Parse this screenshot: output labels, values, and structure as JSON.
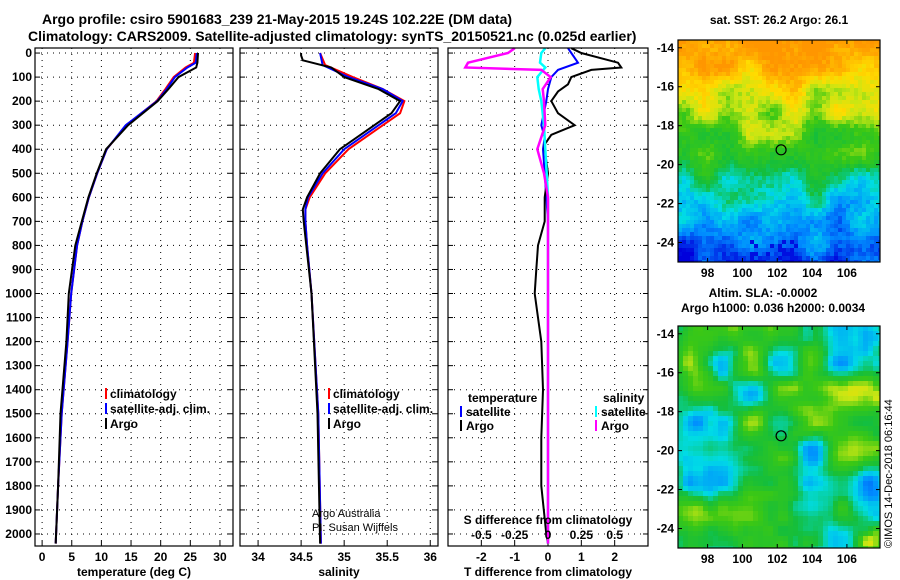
{
  "title_line1": "Argo profile: csiro 5901683_239 21-May-2015 19.24S 102.22E (DM data)",
  "title_line2": "Climatology: CARS2009. Satellite-adjusted climatology: synTS_20150521.nc (0.025d earlier)",
  "credit": "©IMOS 14-Dec-2018 06:16:44",
  "attribution": [
    "Argo Australia",
    "PI: Susan Wijffels"
  ],
  "colors": {
    "climatology": "#ff0000",
    "satellite": "#0000ff",
    "argo": "#000000",
    "sat_s": "#00ffff",
    "argo_s": "#ff00ff"
  },
  "chart_data": [
    {
      "type": "line",
      "name": "temperature-profile",
      "xlabel": "temperature (deg C)",
      "xlim": [
        -1.2,
        32.2
      ],
      "xticks": [
        0,
        5,
        10,
        15,
        20,
        25,
        30
      ],
      "ylim": [
        -21,
        2050
      ],
      "yticks": [
        0,
        100,
        200,
        300,
        400,
        500,
        600,
        700,
        800,
        900,
        1000,
        1100,
        1200,
        1300,
        1400,
        1500,
        1600,
        1700,
        1800,
        1900,
        2000
      ],
      "legend": [
        "climatology",
        "satellite-adj. clim.",
        "Argo"
      ],
      "series": [
        {
          "name": "climatology",
          "color": "#ff0000",
          "depth": [
            0,
            40,
            60,
            100,
            150,
            200,
            300,
            400,
            500,
            600,
            700,
            800,
            1000,
            1200,
            1500,
            1800,
            2040
          ],
          "values": [
            25.8,
            25.6,
            24.2,
            22.2,
            20.8,
            19.3,
            14.2,
            10.9,
            9.3,
            7.9,
            6.8,
            5.9,
            4.9,
            4.3,
            3.3,
            2.7,
            2.3
          ]
        },
        {
          "name": "satellite-adj. clim.",
          "color": "#0000ff",
          "depth": [
            0,
            40,
            60,
            100,
            150,
            200,
            300,
            400,
            500,
            600,
            700,
            800,
            1000,
            1200,
            1500,
            1800,
            2040
          ],
          "values": [
            26.1,
            25.9,
            24.5,
            22.4,
            21.0,
            19.4,
            14.1,
            10.9,
            9.3,
            7.9,
            6.8,
            5.9,
            4.9,
            4.3,
            3.3,
            2.7,
            2.3
          ]
        },
        {
          "name": "Argo",
          "color": "#000000",
          "depth": [
            0,
            40,
            60,
            100,
            150,
            200,
            300,
            400,
            500,
            600,
            700,
            800,
            1000,
            1200,
            1500,
            1800,
            2040
          ],
          "values": [
            26.3,
            26.2,
            26.0,
            23.0,
            21.3,
            19.5,
            14.5,
            10.8,
            9.2,
            7.8,
            6.7,
            5.6,
            4.5,
            4.1,
            3.1,
            2.7,
            2.3
          ]
        }
      ]
    },
    {
      "type": "line",
      "name": "salinity-profile",
      "xlabel": "salinity",
      "xlim": [
        33.79,
        36.09
      ],
      "xticks": [
        34,
        34.5,
        35,
        35.5,
        36
      ],
      "ylim": [
        -21,
        2050
      ],
      "legend": [
        "climatology",
        "satellite-adj. clim.",
        "Argo"
      ],
      "series": [
        {
          "name": "climatology",
          "color": "#ff0000",
          "depth": [
            0,
            50,
            100,
            150,
            200,
            250,
            300,
            400,
            500,
            600,
            650,
            700,
            800,
            1000,
            1500,
            2040
          ],
          "values": [
            34.72,
            34.78,
            35.1,
            35.45,
            35.7,
            35.65,
            35.45,
            35.05,
            34.78,
            34.6,
            34.55,
            34.55,
            34.57,
            34.62,
            34.7,
            34.73
          ]
        },
        {
          "name": "satellite-adj. clim.",
          "color": "#0000ff",
          "depth": [
            0,
            50,
            100,
            150,
            200,
            250,
            300,
            400,
            500,
            600,
            650,
            700,
            800,
            1000,
            1500,
            2040
          ],
          "values": [
            34.72,
            34.75,
            35.05,
            35.45,
            35.68,
            35.6,
            35.4,
            35.0,
            34.75,
            34.58,
            34.55,
            34.55,
            34.57,
            34.62,
            34.7,
            34.73
          ]
        },
        {
          "name": "Argo",
          "color": "#000000",
          "depth": [
            0,
            10,
            30,
            60,
            100,
            150,
            200,
            250,
            300,
            400,
            500,
            600,
            650,
            700,
            800,
            1000,
            1500,
            2040
          ],
          "values": [
            34.5,
            34.5,
            34.52,
            34.85,
            35.0,
            35.4,
            35.65,
            35.55,
            35.35,
            34.95,
            34.72,
            34.57,
            34.52,
            34.53,
            34.56,
            34.62,
            34.69,
            34.72
          ]
        }
      ]
    },
    {
      "type": "line",
      "name": "difference-profile",
      "xlabel": "T difference from climatology",
      "xlabel2": "S difference from climatology",
      "xlim": [
        -3,
        3
      ],
      "xticks": [
        -2,
        -1,
        0,
        1,
        2
      ],
      "xlim2": [
        -0.75,
        0.75
      ],
      "xticks2": [
        -0.5,
        -0.25,
        0,
        0.25,
        0.5
      ],
      "xticklabels2": [
        "-0.5",
        "-0.25",
        "0",
        "0.25",
        "0.5"
      ],
      "ylim": [
        -21,
        2050
      ],
      "legend_temperature": {
        "title": "temperature",
        "items": [
          "satellite",
          "Argo"
        ]
      },
      "legend_salinity": {
        "title": "salinity",
        "items": [
          "satellite",
          "Argo"
        ]
      },
      "series": [
        {
          "name": "T satellite",
          "axis": "T",
          "color": "#0000ff",
          "depth": [
            -20,
            0,
            40,
            70,
            100,
            150,
            200,
            300,
            350,
            400,
            500,
            600,
            700,
            900,
            1100,
            1400
          ],
          "values": [
            0.6,
            0.7,
            0.9,
            0.3,
            0.1,
            0.0,
            -0.05,
            -0.2,
            -0.1,
            -0.15,
            -0.1,
            -0.05,
            0.0,
            0.0,
            0.0,
            0.0
          ]
        },
        {
          "name": "T Argo",
          "axis": "T",
          "color": "#000000",
          "depth": [
            -20,
            0,
            40,
            60,
            70,
            100,
            130,
            160,
            200,
            250,
            300,
            340,
            380,
            400,
            500,
            600,
            700,
            800,
            900,
            1000,
            1100,
            1200,
            1400,
            1600,
            1800,
            2000,
            2040
          ],
          "values": [
            0.7,
            1.0,
            2.1,
            2.2,
            1.3,
            0.7,
            0.6,
            0.3,
            0.1,
            0.3,
            0.8,
            0.1,
            -0.1,
            -0.1,
            0.0,
            -0.1,
            -0.1,
            -0.3,
            -0.35,
            -0.4,
            -0.3,
            -0.2,
            -0.15,
            -0.2,
            -0.2,
            -0.05,
            0.0
          ]
        },
        {
          "name": "S satellite",
          "axis": "S",
          "color": "#00ffff",
          "depth": [
            -20,
            0,
            40,
            60,
            100,
            150,
            200,
            300,
            400,
            500,
            600,
            800,
            1000,
            1400,
            2040
          ],
          "values": [
            -0.02,
            -0.05,
            -0.06,
            -0.02,
            -0.08,
            -0.07,
            -0.05,
            -0.03,
            -0.02,
            -0.01,
            0.0,
            0.0,
            0.0,
            0.0,
            0.0
          ]
        },
        {
          "name": "S Argo",
          "axis": "S",
          "color": "#ff00ff",
          "depth": [
            -20,
            0,
            40,
            60,
            70,
            100,
            150,
            200,
            300,
            400,
            500,
            600,
            700,
            1000,
            1400,
            2040
          ],
          "values": [
            -0.25,
            -0.3,
            -0.6,
            -0.62,
            -0.05,
            0.02,
            -0.04,
            -0.03,
            -0.02,
            -0.08,
            -0.03,
            0.0,
            0.0,
            0.0,
            0.0,
            0.0
          ]
        }
      ]
    },
    {
      "type": "heatmap",
      "name": "sst-map",
      "title": "sat. SST: 26.2 Argo: 26.1",
      "xticks": [
        98,
        100,
        102,
        104,
        106
      ],
      "yticks": [
        -14,
        -16,
        -18,
        -20,
        -22,
        -24
      ],
      "xlim": [
        96.3,
        107.9
      ],
      "ylim": [
        -25.0,
        -13.6
      ],
      "marker": {
        "lon": 102.22,
        "lat": -19.24
      }
    },
    {
      "type": "heatmap",
      "name": "sla-map",
      "title": "Altim. SLA: -0.0002",
      "subtitle": "Argo h1000: 0.036 h2000: 0.0034",
      "xticks": [
        98,
        100,
        102,
        104,
        106
      ],
      "yticks": [
        -14,
        -16,
        -18,
        -20,
        -22,
        -24
      ],
      "xlim": [
        96.3,
        107.9
      ],
      "ylim": [
        -25.0,
        -13.6
      ],
      "marker": {
        "lon": 102.22,
        "lat": -19.24
      }
    }
  ]
}
